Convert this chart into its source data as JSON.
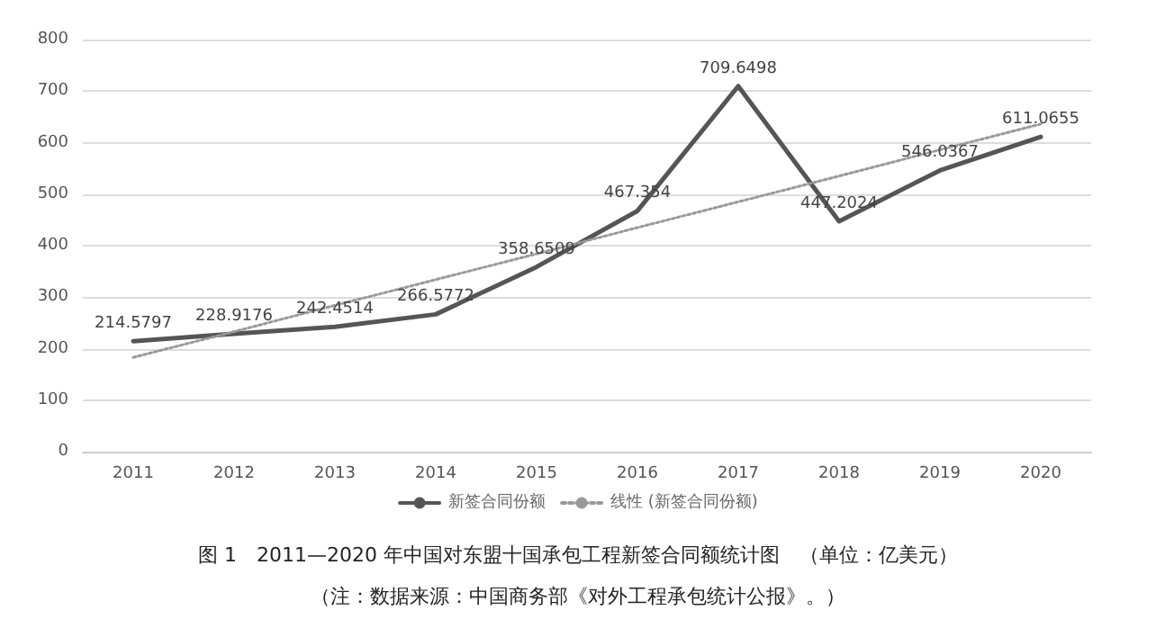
{
  "chart_data": {
    "type": "line",
    "title": "图 1　2011—2020 年中国对东盟十国承包工程新签合同额统计图　（单位：亿美元）",
    "annotations": [
      "（注：数据来源：中国商务部《对外工程承包统计公报》。）"
    ],
    "categories": [
      "2011",
      "2012",
      "2013",
      "2014",
      "2015",
      "2016",
      "2017",
      "2018",
      "2019",
      "2020"
    ],
    "series": [
      {
        "name": "新签合同份额",
        "color": "#555555",
        "values": [
          214.5797,
          228.9176,
          242.4514,
          266.5772,
          358.6509,
          467.354,
          709.6498,
          447.2024,
          546.0367,
          611.0655
        ],
        "value_labels": [
          "214.5797",
          "228.9176",
          "242.4514",
          "266.5772",
          "358.6509",
          "467.354",
          "709.6498",
          "447.2024",
          "546.0367",
          "611.0655"
        ],
        "line_style": "solid"
      },
      {
        "name": "线性 (新签合同份额)",
        "color": "#999999",
        "values": [
          183,
          233,
          284,
          334,
          384,
          435,
          485,
          535,
          586,
          636
        ],
        "line_style": "dotted"
      }
    ],
    "ylim": [
      0,
      800
    ],
    "yticks": [
      0,
      100,
      200,
      300,
      400,
      500,
      600,
      700,
      800
    ],
    "grid": "y",
    "legend": "bottom",
    "marker": "none"
  }
}
